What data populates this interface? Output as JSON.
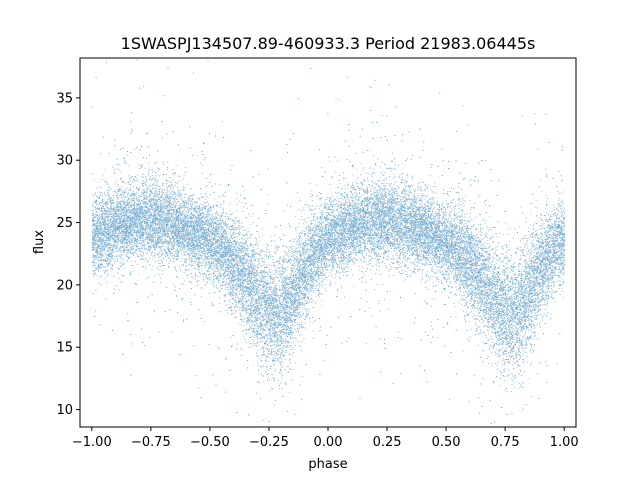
{
  "chart_data": {
    "type": "scatter",
    "title": "1SWASPJ134507.89-460933.3 Period 21983.06445s",
    "xlabel": "phase",
    "ylabel": "flux",
    "xlim": [
      -1.05,
      1.05
    ],
    "ylim": [
      8.6,
      38.2
    ],
    "x_ticks": [
      -1.0,
      -0.75,
      -0.5,
      -0.25,
      0.0,
      0.25,
      0.5,
      0.75,
      1.0
    ],
    "x_tick_labels": [
      "−1.00",
      "−0.75",
      "−0.50",
      "−0.25",
      "0.00",
      "0.25",
      "0.50",
      "0.75",
      "1.00"
    ],
    "y_ticks": [
      10,
      15,
      20,
      25,
      30,
      35
    ],
    "y_tick_labels": [
      "10",
      "15",
      "20",
      "25",
      "30",
      "35"
    ],
    "grid": false,
    "marker_color": "#1f77b4",
    "series": [
      {
        "x": [
          -1.0,
          -0.95,
          -0.9,
          -0.85,
          -0.8,
          -0.75,
          -0.7,
          -0.65,
          -0.6,
          -0.55,
          -0.5,
          -0.45,
          -0.4,
          -0.35,
          -0.3,
          -0.25,
          -0.2,
          -0.15,
          -0.1,
          -0.05,
          0.0,
          0.05,
          0.1,
          0.15,
          0.2,
          0.25,
          0.3,
          0.35,
          0.4,
          0.45,
          0.5,
          0.55,
          0.6,
          0.65,
          0.7,
          0.75,
          0.8,
          0.85,
          0.9,
          0.95,
          1.0
        ],
        "y": [
          23.8,
          24.2,
          24.6,
          24.9,
          25.1,
          25.2,
          25.1,
          24.8,
          24.4,
          24.0,
          23.5,
          22.8,
          21.8,
          20.5,
          19.0,
          17.8,
          17.6,
          19.2,
          21.2,
          22.9,
          23.8,
          24.3,
          24.7,
          25.0,
          25.1,
          25.2,
          25.0,
          24.7,
          24.3,
          23.9,
          23.4,
          22.7,
          21.7,
          20.4,
          18.9,
          17.7,
          17.6,
          19.3,
          21.3,
          22.9,
          23.6
        ],
        "spread": [
          1.5,
          1.5,
          1.5,
          1.5,
          1.6,
          1.6,
          1.6,
          1.5,
          1.5,
          1.5,
          1.5,
          1.6,
          1.8,
          2.0,
          2.2,
          2.4,
          2.4,
          2.2,
          1.9,
          1.6,
          1.5,
          1.5,
          1.5,
          1.5,
          1.6,
          1.6,
          1.6,
          1.5,
          1.5,
          1.5,
          1.5,
          1.6,
          1.8,
          2.0,
          2.2,
          2.4,
          2.4,
          2.2,
          1.9,
          1.6,
          1.5
        ]
      }
    ]
  }
}
